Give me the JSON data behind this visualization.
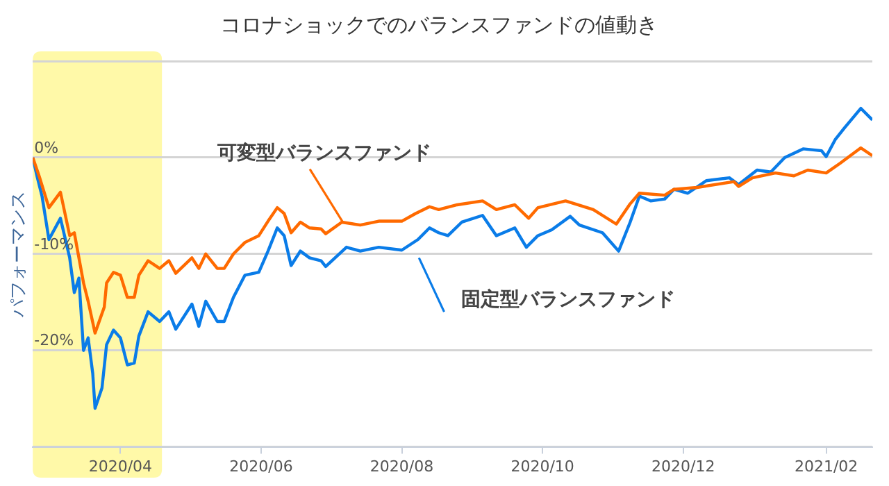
{
  "chart_data": {
    "type": "line",
    "title": "コロナショックでのバランスファンドの値動き",
    "ylabel": "パフォーマンス",
    "xlim": [
      "2020-02-23",
      "2021-02-21"
    ],
    "xticks": [
      {
        "value": "2020-04-01",
        "label": "2020/04"
      },
      {
        "value": "2020-06-01",
        "label": "2020/06"
      },
      {
        "value": "2020-08-01",
        "label": "2020/08"
      },
      {
        "value": "2020-10-01",
        "label": "2020/10"
      },
      {
        "value": "2020-12-01",
        "label": "2020/12"
      },
      {
        "value": "2021-02-01",
        "label": "2021/02"
      }
    ],
    "ylim": [
      -30,
      10
    ],
    "yticks": [
      {
        "value": -30,
        "label": null
      },
      {
        "value": -20,
        "label": "-20%"
      },
      {
        "value": -10,
        "label": "-10%"
      },
      {
        "value": 0,
        "label": "0%"
      },
      {
        "value": 10,
        "label": null
      }
    ],
    "grid": "y",
    "legend": false,
    "marker": "none",
    "line_style": "solid",
    "bands": [
      {
        "axis": "x",
        "from": "2020-02-23",
        "to": "2020-04-19",
        "color": "#fff9a8"
      }
    ],
    "series": [
      {
        "name": "可変型バランスファンド",
        "color": "#ff6a00",
        "x": [
          "2020-02-23",
          "2020-02-26",
          "2020-03-01",
          "2020-03-06",
          "2020-03-10",
          "2020-03-12",
          "2020-03-16",
          "2020-03-18",
          "2020-03-21",
          "2020-03-25",
          "2020-03-26",
          "2020-03-29",
          "2020-04-01",
          "2020-04-04",
          "2020-04-07",
          "2020-04-09",
          "2020-04-13",
          "2020-04-18",
          "2020-04-22",
          "2020-04-25",
          "2020-05-02",
          "2020-05-05",
          "2020-05-08",
          "2020-05-13",
          "2020-05-16",
          "2020-05-20",
          "2020-05-25",
          "2020-05-31",
          "2020-06-04",
          "2020-06-08",
          "2020-06-11",
          "2020-06-14",
          "2020-06-18",
          "2020-06-22",
          "2020-06-27",
          "2020-06-29",
          "2020-07-06",
          "2020-07-14",
          "2020-07-22",
          "2020-08-01",
          "2020-08-07",
          "2020-08-13",
          "2020-08-17",
          "2020-08-25",
          "2020-09-05",
          "2020-09-11",
          "2020-09-19",
          "2020-09-25",
          "2020-09-29",
          "2020-10-11",
          "2020-10-23",
          "2020-11-02",
          "2020-11-08",
          "2020-11-12",
          "2020-11-23",
          "2020-11-27",
          "2020-12-07",
          "2020-12-23",
          "2020-12-25",
          "2020-12-31",
          "2021-01-10",
          "2021-01-18",
          "2021-01-24",
          "2021-02-01",
          "2021-02-07",
          "2021-02-16",
          "2021-02-21"
        ],
        "values": [
          0,
          -2.1,
          -5.2,
          -3.6,
          -8.1,
          -7.8,
          -13,
          -14.9,
          -18.2,
          -15.5,
          -13,
          -11.9,
          -12.2,
          -14.5,
          -14.5,
          -12.2,
          -10.7,
          -11.5,
          -10.7,
          -12,
          -10.4,
          -11.5,
          -10,
          -11.5,
          -11.5,
          -10,
          -8.8,
          -8.1,
          -6.6,
          -5.2,
          -5.8,
          -7.8,
          -6.7,
          -7.3,
          -7.4,
          -7.9,
          -6.7,
          -7,
          -6.6,
          -6.6,
          -5.8,
          -5.1,
          -5.4,
          -4.9,
          -4.5,
          -5.4,
          -4.9,
          -6.3,
          -5.2,
          -4.5,
          -5.4,
          -6.9,
          -4.8,
          -3.7,
          -3.9,
          -3.3,
          -3.1,
          -2.5,
          -3,
          -2.1,
          -1.6,
          -1.9,
          -1.3,
          -1.6,
          -0.6,
          1.0,
          0.2
        ]
      },
      {
        "name": "固定型バランスファンド",
        "color": "#0a7ce8",
        "x": [
          "2020-02-23",
          "2020-02-25",
          "2020-02-27",
          "2020-03-01",
          "2020-03-06",
          "2020-03-10",
          "2020-03-12",
          "2020-03-14",
          "2020-03-16",
          "2020-03-18",
          "2020-03-20",
          "2020-03-21",
          "2020-03-24",
          "2020-03-26",
          "2020-03-29",
          "2020-04-01",
          "2020-04-04",
          "2020-04-07",
          "2020-04-09",
          "2020-04-13",
          "2020-04-18",
          "2020-04-22",
          "2020-04-25",
          "2020-05-02",
          "2020-05-05",
          "2020-05-08",
          "2020-05-13",
          "2020-05-16",
          "2020-05-20",
          "2020-05-25",
          "2020-05-31",
          "2020-06-04",
          "2020-06-08",
          "2020-06-11",
          "2020-06-14",
          "2020-06-18",
          "2020-06-22",
          "2020-06-27",
          "2020-06-29",
          "2020-07-08",
          "2020-07-14",
          "2020-07-22",
          "2020-08-01",
          "2020-08-08",
          "2020-08-13",
          "2020-08-17",
          "2020-08-21",
          "2020-08-27",
          "2020-09-05",
          "2020-09-11",
          "2020-09-19",
          "2020-09-24",
          "2020-09-29",
          "2020-10-05",
          "2020-10-13",
          "2020-10-17",
          "2020-10-27",
          "2020-11-03",
          "2020-11-08",
          "2020-11-12",
          "2020-11-17",
          "2020-11-23",
          "2020-11-27",
          "2020-12-03",
          "2020-12-11",
          "2020-12-21",
          "2020-12-25",
          "2021-01-02",
          "2021-01-08",
          "2021-01-14",
          "2021-01-22",
          "2021-01-30",
          "2021-02-01",
          "2021-02-05",
          "2021-02-09",
          "2021-02-16",
          "2021-02-21"
        ],
        "values": [
          0,
          -2.1,
          -4,
          -8.5,
          -6.3,
          -10.4,
          -14,
          -12.5,
          -20,
          -18.7,
          -22.4,
          -26,
          -23.9,
          -19.4,
          -17.9,
          -18.7,
          -21.5,
          -21.3,
          -18.5,
          -16,
          -17,
          -16,
          -17.8,
          -15.2,
          -17.5,
          -14.9,
          -17,
          -17,
          -14.5,
          -12.2,
          -11.9,
          -9.7,
          -7.3,
          -8.1,
          -11.2,
          -9.7,
          -10.4,
          -10.7,
          -11.3,
          -9.3,
          -9.7,
          -9.3,
          -9.6,
          -8.5,
          -7.3,
          -7.8,
          -8.1,
          -6.7,
          -6,
          -8.1,
          -7.3,
          -9.3,
          -8.1,
          -7.5,
          -6.1,
          -7,
          -7.8,
          -9.7,
          -6.7,
          -4,
          -4.5,
          -4.3,
          -3.3,
          -3.7,
          -2.4,
          -2.1,
          -2.8,
          -1.3,
          -1.5,
          0,
          0.9,
          0.7,
          0.1,
          1.9,
          3.1,
          5.1,
          3.9
        ]
      }
    ]
  }
}
